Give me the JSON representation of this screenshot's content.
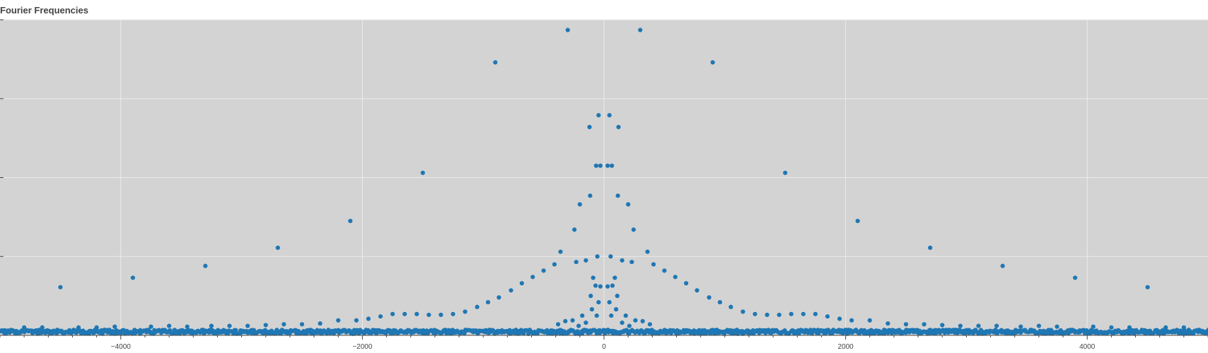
{
  "chart_data": {
    "type": "scatter",
    "title": "Fourier Frequencies",
    "xlabel": "",
    "ylabel": "",
    "xlim": [
      -5000,
      5000
    ],
    "ylim": [
      0,
      4
    ],
    "x_ticks": [
      -4000,
      -2000,
      0,
      2000,
      4000
    ],
    "x_tick_labels": [
      "−4000",
      "−2000",
      "0",
      "2000",
      "4000"
    ],
    "y_ticks": [
      1,
      2,
      3,
      4
    ],
    "y_tick_labels": [
      "",
      "",
      "",
      ""
    ],
    "grid": true,
    "background_color": "#d3d3d3",
    "marker_color": "#1f77b4",
    "series": [
      {
        "x": [
          -300,
          300,
          -900,
          900,
          -1500,
          1500,
          -2100,
          2100,
          -2700,
          2700,
          -3300,
          3300,
          -3900,
          3900,
          -4500,
          4500,
          -45,
          45,
          -120,
          120,
          -65,
          65,
          -30,
          30,
          -115,
          115,
          -200,
          200,
          -245,
          245,
          -360,
          360,
          -150,
          150,
          -230,
          230,
          -410,
          410,
          -500,
          500,
          -590,
          590,
          -680,
          680,
          -770,
          770,
          -870,
          870,
          -960,
          960,
          -1050,
          1050,
          -1150,
          1150,
          -1250,
          1250,
          -1350,
          1350,
          -1450,
          1450,
          -1550,
          1550,
          -1650,
          1650,
          -1750,
          1750,
          -1850,
          1850,
          -1950,
          1950,
          -2050,
          2050,
          -2200,
          2200,
          -2350,
          2350,
          -2500,
          2500,
          -2650,
          2650,
          -2800,
          2800,
          -2950,
          2950,
          -3100,
          3100,
          -3250,
          3250,
          -3450,
          3450,
          -3600,
          3600,
          -3750,
          3750,
          -4050,
          4050,
          -4200,
          4200,
          -4350,
          4350,
          -4650,
          4650,
          -4800,
          4800,
          -55,
          55,
          -90,
          90,
          -70,
          70,
          -30,
          30,
          -110,
          110,
          -45,
          45,
          -100,
          100,
          -60,
          60,
          -180,
          180,
          -260,
          260,
          -320,
          320,
          -380,
          380,
          -150,
          150,
          -210,
          210
        ],
        "y": [
          3.87,
          3.87,
          3.46,
          3.46,
          2.06,
          2.06,
          1.45,
          1.45,
          1.11,
          1.11,
          0.88,
          0.88,
          0.73,
          0.73,
          0.61,
          0.61,
          2.79,
          2.79,
          2.64,
          2.64,
          2.15,
          2.15,
          2.15,
          2.15,
          1.77,
          1.77,
          1.66,
          1.66,
          1.34,
          1.34,
          1.06,
          1.06,
          0.95,
          0.95,
          0.93,
          0.93,
          0.9,
          0.9,
          0.82,
          0.82,
          0.74,
          0.74,
          0.66,
          0.66,
          0.57,
          0.57,
          0.48,
          0.48,
          0.42,
          0.42,
          0.36,
          0.36,
          0.3,
          0.3,
          0.27,
          0.27,
          0.26,
          0.26,
          0.26,
          0.26,
          0.27,
          0.27,
          0.27,
          0.27,
          0.27,
          0.27,
          0.24,
          0.24,
          0.21,
          0.21,
          0.19,
          0.19,
          0.19,
          0.19,
          0.15,
          0.15,
          0.14,
          0.14,
          0.14,
          0.14,
          0.13,
          0.13,
          0.12,
          0.12,
          0.12,
          0.12,
          0.12,
          0.12,
          0.11,
          0.11,
          0.12,
          0.12,
          0.11,
          0.11,
          0.11,
          0.11,
          0.1,
          0.1,
          0.1,
          0.1,
          0.1,
          0.1,
          0.1,
          0.1,
          1.0,
          1.0,
          0.73,
          0.73,
          0.63,
          0.63,
          0.62,
          0.62,
          0.5,
          0.5,
          0.42,
          0.42,
          0.33,
          0.33,
          0.25,
          0.25,
          0.25,
          0.25,
          0.19,
          0.19,
          0.18,
          0.18,
          0.14,
          0.14,
          0.16,
          0.16,
          0.12,
          0.12
        ]
      }
    ]
  }
}
